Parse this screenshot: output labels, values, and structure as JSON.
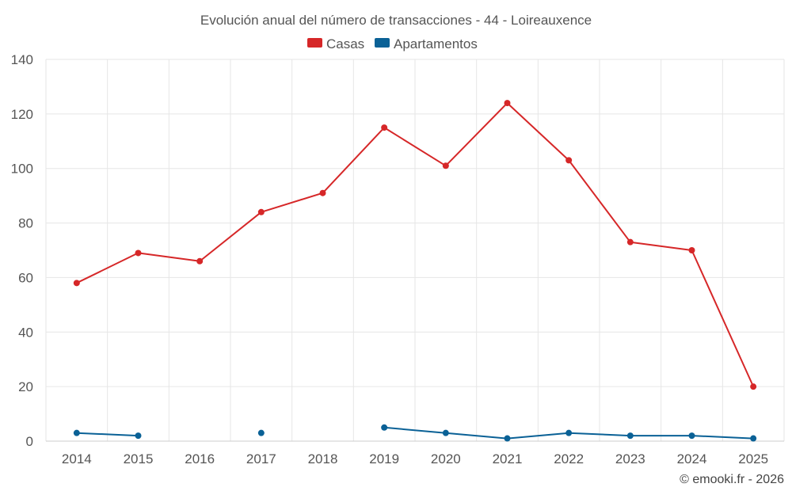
{
  "chart_data": {
    "type": "line",
    "title": "Evolución anual del número de transacciones - 44 - Loireauxence",
    "categories": [
      "2014",
      "2015",
      "2016",
      "2017",
      "2018",
      "2019",
      "2020",
      "2021",
      "2022",
      "2023",
      "2024",
      "2025"
    ],
    "ylim": [
      0,
      140
    ],
    "yticks": [
      0,
      20,
      40,
      60,
      80,
      100,
      120,
      140
    ],
    "grid": true,
    "legend_position": "top-center",
    "xlabel": "",
    "ylabel": "",
    "series": [
      {
        "name": "Casas",
        "color": "#d62728",
        "values": [
          58,
          69,
          66,
          84,
          91,
          115,
          101,
          124,
          103,
          73,
          70,
          20
        ]
      },
      {
        "name": "Apartamentos",
        "color": "#0a6196",
        "values": [
          3,
          2,
          null,
          3,
          null,
          5,
          3,
          1,
          3,
          2,
          2,
          1
        ]
      }
    ]
  },
  "credit": "© emooki.fr - 2026"
}
